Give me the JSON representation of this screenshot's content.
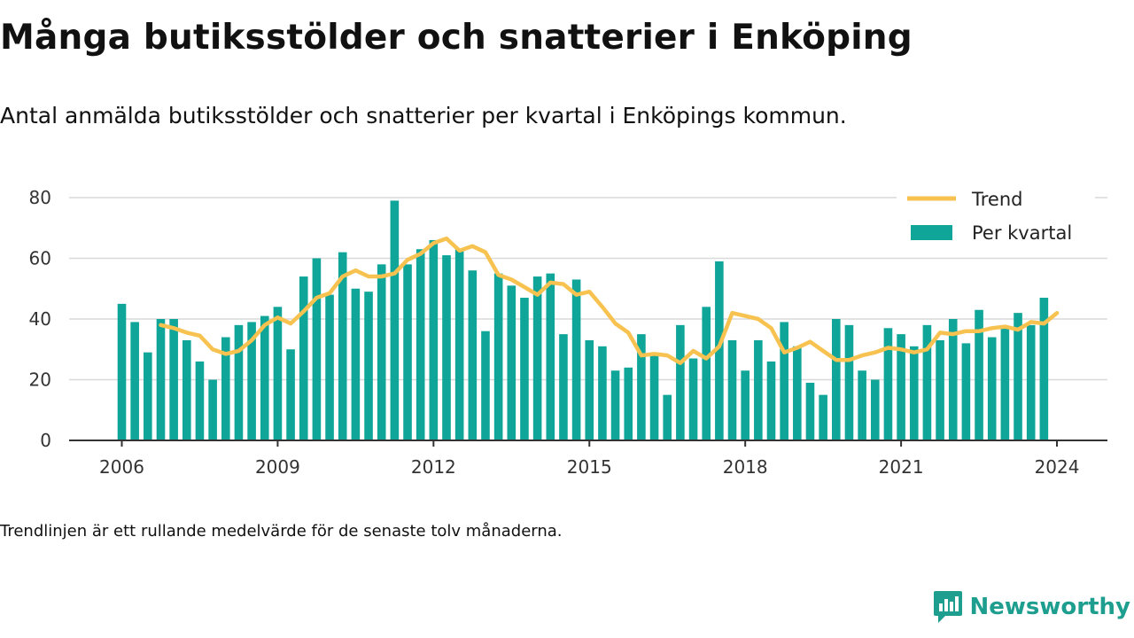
{
  "title": "Många butiksstölder och snatterier i Enköping",
  "subtitle": "Antal anmälda butiksstölder och snatterier per kvartal i Enköpings kommun.",
  "footnote": "Trendlinjen är ett rullande medelvärde för de senaste tolv månaderna.",
  "brand": {
    "name": "Newsworthy",
    "icon": "newsworthy-logo-icon"
  },
  "colors": {
    "bar": "#0fa699",
    "trend": "#f7c24f",
    "axis": "#333333",
    "grid": "#d9d9d9",
    "brand": "#1e9e8f"
  },
  "chart_data": {
    "type": "bar",
    "x_unit": "quarter",
    "x_start": "2006 Q1",
    "xticks": [
      "2006",
      "2009",
      "2012",
      "2015",
      "2018",
      "2021",
      "2024"
    ],
    "ylim": [
      0,
      80
    ],
    "yticks": [
      0,
      20,
      40,
      60,
      80
    ],
    "grid": true,
    "legend_position": "top-right",
    "series": [
      {
        "name": "Per kvartal",
        "type": "bar",
        "values": [
          45,
          39,
          29,
          40,
          40,
          33,
          26,
          20,
          34,
          38,
          39,
          41,
          44,
          30,
          54,
          60,
          48,
          62,
          50,
          49,
          58,
          79,
          58,
          63,
          66,
          61,
          63,
          56,
          36,
          55,
          51,
          47,
          54,
          55,
          35,
          53,
          33,
          31,
          23,
          24,
          35,
          28,
          15,
          38,
          27,
          44,
          59,
          33,
          23,
          33,
          26,
          39,
          31,
          19,
          15,
          40,
          38,
          23,
          20,
          37,
          35,
          31,
          38,
          33,
          40,
          32,
          43,
          34,
          37,
          42,
          38,
          47
        ]
      },
      {
        "name": "Trend",
        "type": "line",
        "start_index": 3,
        "values": [
          38,
          37,
          35.5,
          34.5,
          30,
          28.5,
          29.5,
          33,
          38,
          40.5,
          38.5,
          42.5,
          47,
          48.5,
          54,
          56,
          54,
          54,
          55,
          59.5,
          61.5,
          65,
          66.5,
          62.5,
          64,
          62,
          54.5,
          53,
          50.5,
          48,
          52,
          51.5,
          48,
          49,
          44,
          38.5,
          35.5,
          28,
          28.5,
          28,
          25.5,
          29.5,
          27,
          31,
          42,
          41,
          40,
          37,
          29,
          30.5,
          32.5,
          29.5,
          26.5,
          26.5,
          28,
          29,
          30.5,
          30,
          29,
          30,
          35.5,
          35,
          36,
          36,
          37,
          37.5,
          36.5,
          39,
          38.5,
          42
        ]
      }
    ]
  }
}
